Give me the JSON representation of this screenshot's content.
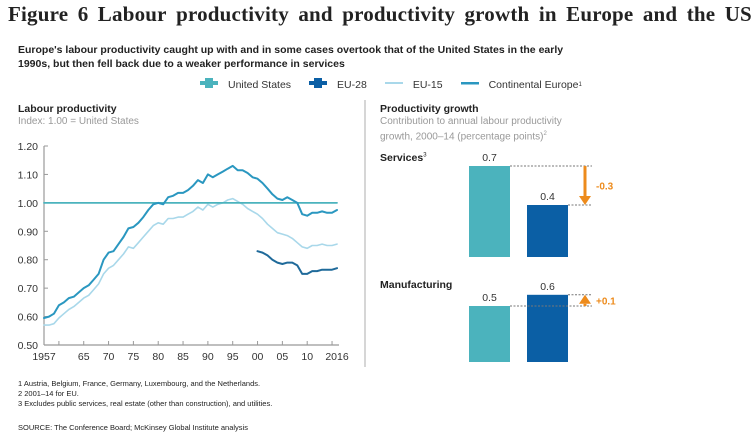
{
  "figure_title_words": [
    "Figure",
    "6",
    "Labour",
    "productivity",
    "and",
    "productivity",
    "growth",
    "in",
    "Europe",
    "and",
    "the",
    "US"
  ],
  "subtitle": "Europe's labour productivity caught up with and in some cases overtook that of the United States in the early 1990s, but then fell back due to a weaker performance in services",
  "legend": [
    {
      "label": "United States",
      "sup": "",
      "color": "#4bb3bd",
      "style": "square"
    },
    {
      "label": "EU-28",
      "sup": "",
      "color": "#0b5fa5",
      "style": "square"
    },
    {
      "label": "EU-15",
      "sup": "",
      "color": "#a9d8ea",
      "style": "line"
    },
    {
      "label": "Continental Europe",
      "sup": "1",
      "color": "#2a97c0",
      "style": "line"
    }
  ],
  "colors": {
    "us": "#4bb3bd",
    "eu28": "#0b5fa5",
    "eu28_line": "#1f6a9a",
    "eu15": "#a9d8ea",
    "continental": "#2a97c0",
    "baseline": "#4bb3bd",
    "arrow": "#ed8b1c",
    "axis": "#999999"
  },
  "footnotes": [
    "1  Austria, Belgium, France, Germany, Luxembourg, and the Netherlands.",
    "2  2001–14 for EU.",
    "3  Excludes public services, real estate (other than construction), and utilities."
  ],
  "source": "SOURCE:  The Conference Board; McKinsey Global Institute analysis",
  "chart_data": [
    {
      "type": "line",
      "title": "Labour productivity",
      "subtitle": "Index: 1.00 = United States",
      "xlabel": "",
      "ylabel": "",
      "ylim": [
        0.5,
        1.2
      ],
      "xlim": [
        1957,
        2016
      ],
      "yticks": [
        1.2,
        1.1,
        1.0,
        0.9,
        0.8,
        0.7,
        0.6,
        0.5
      ],
      "ytick_labels": [
        "1.20",
        "1.10",
        "1.00",
        "0.90",
        "0.80",
        "0.70",
        "0.60",
        "0.50"
      ],
      "xticks": [
        1957,
        1965,
        1970,
        1975,
        1980,
        1985,
        1990,
        1995,
        2000,
        2005,
        2010,
        2016
      ],
      "xtick_labels": [
        "1957",
        "65",
        "70",
        "75",
        "80",
        "85",
        "90",
        "95",
        "00",
        "05",
        "10",
        "2016"
      ],
      "minor_xticks": [
        1960,
        1965,
        1970,
        1975,
        1980,
        1985,
        1990,
        1995,
        2000,
        2005,
        2010,
        2015
      ],
      "grid": false,
      "series": [
        {
          "name": "United States",
          "x": [
            1957,
            2016
          ],
          "values": [
            1.0,
            1.0
          ]
        },
        {
          "name": "Continental Europe",
          "x": [
            1957,
            1958,
            1959,
            1960,
            1961,
            1962,
            1963,
            1964,
            1965,
            1966,
            1967,
            1968,
            1969,
            1970,
            1971,
            1972,
            1973,
            1974,
            1975,
            1976,
            1977,
            1978,
            1979,
            1980,
            1981,
            1982,
            1983,
            1984,
            1985,
            1986,
            1987,
            1988,
            1989,
            1990,
            1991,
            1992,
            1993,
            1994,
            1995,
            1996,
            1997,
            1998,
            1999,
            2000,
            2001,
            2002,
            2003,
            2004,
            2005,
            2006,
            2007,
            2008,
            2009,
            2010,
            2011,
            2012,
            2013,
            2014,
            2015,
            2016
          ],
          "values": [
            0.595,
            0.6,
            0.61,
            0.64,
            0.65,
            0.665,
            0.67,
            0.685,
            0.7,
            0.71,
            0.73,
            0.75,
            0.8,
            0.825,
            0.83,
            0.855,
            0.88,
            0.91,
            0.915,
            0.93,
            0.95,
            0.975,
            0.995,
            1.0,
            0.995,
            1.02,
            1.025,
            1.035,
            1.035,
            1.045,
            1.06,
            1.08,
            1.07,
            1.1,
            1.09,
            1.1,
            1.11,
            1.12,
            1.13,
            1.115,
            1.115,
            1.105,
            1.09,
            1.085,
            1.07,
            1.05,
            1.03,
            1.015,
            1.01,
            1.02,
            1.01,
            1.0,
            0.96,
            0.955,
            0.965,
            0.965,
            0.97,
            0.965,
            0.965,
            0.975
          ]
        },
        {
          "name": "EU-15",
          "x": [
            1957,
            1958,
            1959,
            1960,
            1961,
            1962,
            1963,
            1964,
            1965,
            1966,
            1967,
            1968,
            1969,
            1970,
            1971,
            1972,
            1973,
            1974,
            1975,
            1976,
            1977,
            1978,
            1979,
            1980,
            1981,
            1982,
            1983,
            1984,
            1985,
            1986,
            1987,
            1988,
            1989,
            1990,
            1991,
            1992,
            1993,
            1994,
            1995,
            1996,
            1997,
            1998,
            1999,
            2000,
            2001,
            2002,
            2003,
            2004,
            2005,
            2006,
            2007,
            2008,
            2009,
            2010,
            2011,
            2012,
            2013,
            2014,
            2015,
            2016
          ],
          "values": [
            0.57,
            0.57,
            0.575,
            0.595,
            0.61,
            0.625,
            0.635,
            0.65,
            0.665,
            0.675,
            0.695,
            0.715,
            0.75,
            0.77,
            0.78,
            0.8,
            0.82,
            0.845,
            0.84,
            0.86,
            0.88,
            0.9,
            0.92,
            0.93,
            0.925,
            0.945,
            0.945,
            0.95,
            0.95,
            0.96,
            0.97,
            0.985,
            0.975,
            0.995,
            0.985,
            0.995,
            1.0,
            1.01,
            1.015,
            1.005,
            0.995,
            0.98,
            0.97,
            0.96,
            0.945,
            0.925,
            0.91,
            0.895,
            0.89,
            0.885,
            0.875,
            0.86,
            0.845,
            0.84,
            0.85,
            0.85,
            0.855,
            0.85,
            0.85,
            0.855
          ]
        },
        {
          "name": "EU-28",
          "x": [
            2000,
            2001,
            2002,
            2003,
            2004,
            2005,
            2006,
            2007,
            2008,
            2009,
            2010,
            2011,
            2012,
            2013,
            2014,
            2015,
            2016
          ],
          "values": [
            0.83,
            0.825,
            0.815,
            0.8,
            0.79,
            0.785,
            0.79,
            0.79,
            0.78,
            0.75,
            0.75,
            0.76,
            0.76,
            0.765,
            0.765,
            0.765,
            0.77
          ]
        }
      ]
    },
    {
      "type": "bar",
      "title": "Productivity growth",
      "subtitle": "Contribution to annual labour productivity growth, 2000–14 (percentage points)",
      "subtitle_sup": "2",
      "groups": [
        {
          "name": "Services",
          "name_sup": "3",
          "series": [
            {
              "name": "United States",
              "value": 0.7,
              "label": "0.7"
            },
            {
              "name": "EU-28",
              "value": 0.4,
              "label": "0.4"
            }
          ],
          "difference": {
            "value": -0.3,
            "label": "-0.3",
            "direction": "down"
          }
        },
        {
          "name": "Manufacturing",
          "name_sup": "",
          "series": [
            {
              "name": "United States",
              "value": 0.5,
              "label": "0.5"
            },
            {
              "name": "EU-28",
              "value": 0.6,
              "label": "0.6"
            }
          ],
          "difference": {
            "value": 0.1,
            "label": "+0.1",
            "direction": "up"
          }
        }
      ]
    }
  ]
}
